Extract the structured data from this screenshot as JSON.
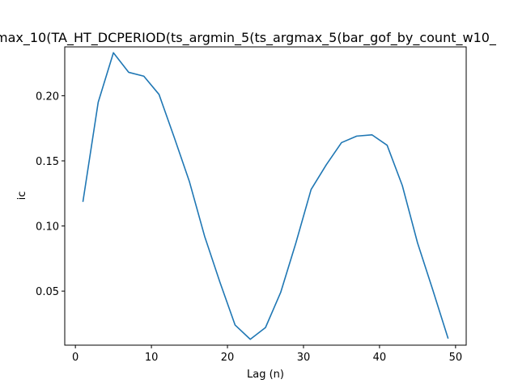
{
  "chart_data": {
    "type": "line",
    "title": "max_10(TA_HT_DCPERIOD(ts_argmin_5(ts_argmax_5(bar_gof_by_count_w10_",
    "xlabel": "Lag (n)",
    "ylabel": "ic",
    "xlim": [
      -1.4,
      51.4
    ],
    "ylim": [
      0.0085,
      0.2375
    ],
    "xticks": [
      0,
      10,
      20,
      30,
      40,
      50
    ],
    "xtick_labels": [
      "0",
      "10",
      "20",
      "30",
      "40",
      "50"
    ],
    "yticks": [
      0.05,
      0.1,
      0.15,
      0.2
    ],
    "ytick_labels": [
      "0.05",
      "0.10",
      "0.15",
      "0.20"
    ],
    "grid": false,
    "series": [
      {
        "color": "#1f77b4",
        "x": [
          1,
          3,
          5,
          7,
          9,
          11,
          13,
          15,
          17,
          19,
          21,
          23,
          25,
          27,
          29,
          31,
          33,
          35,
          37,
          39,
          41,
          43,
          45,
          47,
          49
        ],
        "y": [
          0.119,
          0.195,
          0.233,
          0.218,
          0.215,
          0.201,
          0.168,
          0.134,
          0.092,
          0.057,
          0.024,
          0.013,
          0.022,
          0.049,
          0.087,
          0.128,
          0.147,
          0.164,
          0.169,
          0.17,
          0.162,
          0.131,
          0.087,
          0.051,
          0.014
        ]
      }
    ]
  }
}
